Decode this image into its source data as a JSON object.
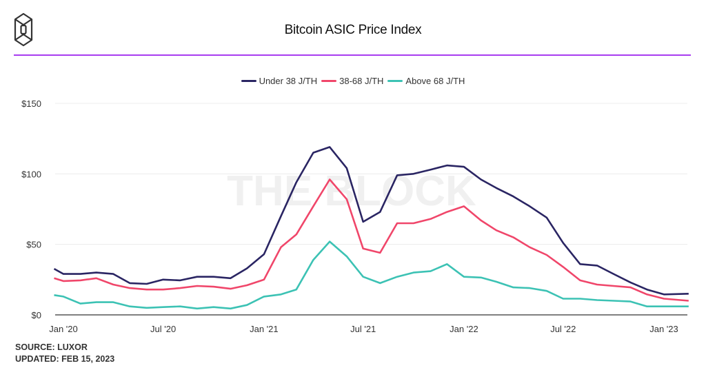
{
  "header": {
    "title": "Bitcoin ASIC Price Index",
    "logo": "the-block-cube-logo"
  },
  "watermark": "THE BLOCK",
  "footer": {
    "source": "SOURCE: LUXOR",
    "updated": "UPDATED: FEB 15, 2023"
  },
  "colors": {
    "accent_rule": "#a83cf0",
    "under38": "#2a2563",
    "mid": "#f0466a",
    "above68": "#3cc2b4"
  },
  "chart_data": {
    "type": "line",
    "title": "Bitcoin ASIC Price Index",
    "xlabel": "",
    "ylabel": "",
    "ylim": [
      0,
      150
    ],
    "yticks": [
      {
        "value": 0,
        "label": "$0"
      },
      {
        "value": 50,
        "label": "$50"
      },
      {
        "value": 100,
        "label": "$100"
      },
      {
        "value": 150,
        "label": "$150"
      }
    ],
    "xticks": [
      {
        "date": "2020-01-01",
        "label": "Jan '20"
      },
      {
        "date": "2020-07-01",
        "label": "Jul '20"
      },
      {
        "date": "2021-01-01",
        "label": "Jan '21"
      },
      {
        "date": "2021-07-01",
        "label": "Jul '21"
      },
      {
        "date": "2022-01-01",
        "label": "Jan '22"
      },
      {
        "date": "2022-07-01",
        "label": "Jul '22"
      },
      {
        "date": "2023-01-01",
        "label": "Jan '23"
      }
    ],
    "grid": true,
    "legend": "top-center",
    "x": [
      "2019-12-15",
      "2020-01-01",
      "2020-02-01",
      "2020-03-01",
      "2020-04-01",
      "2020-05-01",
      "2020-06-01",
      "2020-07-01",
      "2020-08-01",
      "2020-09-01",
      "2020-10-01",
      "2020-11-01",
      "2020-12-01",
      "2021-01-01",
      "2021-02-01",
      "2021-03-01",
      "2021-04-01",
      "2021-05-01",
      "2021-06-01",
      "2021-07-01",
      "2021-08-01",
      "2021-09-01",
      "2021-10-01",
      "2021-11-01",
      "2021-12-01",
      "2022-01-01",
      "2022-02-01",
      "2022-03-01",
      "2022-04-01",
      "2022-05-01",
      "2022-06-01",
      "2022-07-01",
      "2022-08-01",
      "2022-09-01",
      "2022-10-01",
      "2022-11-01",
      "2022-12-01",
      "2023-01-01",
      "2023-02-15"
    ],
    "series": [
      {
        "name": "Under 38 J/TH",
        "color": "#2a2563",
        "values": [
          32.7,
          29,
          29,
          30,
          29,
          22.5,
          22,
          25,
          24.5,
          27,
          27,
          26,
          33,
          43,
          70,
          94,
          115,
          119,
          104,
          66,
          73,
          99,
          100,
          103,
          106,
          105,
          96,
          90,
          84,
          77,
          69,
          51,
          36,
          35,
          29,
          23,
          18,
          14.5,
          15
        ]
      },
      {
        "name": "38-68 J/TH",
        "color": "#f0466a",
        "values": [
          26,
          24,
          24.5,
          26,
          21.5,
          19,
          18,
          18,
          19,
          20.5,
          20,
          18.5,
          21,
          25,
          48,
          57,
          77,
          96,
          82,
          47,
          44,
          65,
          65,
          68,
          73,
          77,
          67,
          60,
          55,
          48,
          42.5,
          34,
          24.5,
          21.5,
          20.5,
          19.5,
          14.5,
          11.5,
          10
        ]
      },
      {
        "name": "Above 68 J/TH",
        "color": "#3cc2b4",
        "values": [
          14,
          13,
          8,
          9,
          9,
          6,
          5,
          5.5,
          6,
          4.5,
          5.5,
          4.5,
          7,
          13,
          14.5,
          18,
          39,
          52,
          41.5,
          27,
          22.5,
          27,
          30,
          31,
          36,
          27,
          26.5,
          23.5,
          19.5,
          19,
          17,
          11.5,
          11.5,
          10.5,
          10,
          9.5,
          6,
          6,
          6
        ]
      }
    ]
  }
}
